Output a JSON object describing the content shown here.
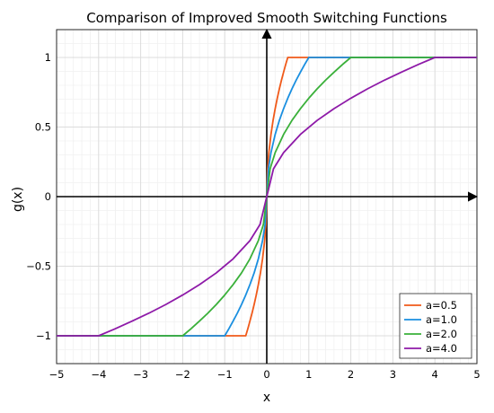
{
  "chart_data": {
    "type": "line",
    "title": "Comparison of Improved Smooth Switching Functions",
    "xlabel": "x",
    "ylabel": "g(x)",
    "xlim": [
      -5,
      5
    ],
    "ylim": [
      -1.2,
      1.2
    ],
    "xticks": [
      "−5",
      "−4",
      "−3",
      "−2",
      "−1",
      "0",
      "1",
      "2",
      "3",
      "4",
      "5"
    ],
    "yticks": [
      "−1",
      "−0.5",
      "0",
      "0.5",
      "1"
    ],
    "grid": true,
    "minor_grid": true,
    "legend_position": "bottom-right",
    "series": [
      {
        "name": "a=0.5",
        "color": "#f05a1a",
        "x": [
          -5,
          -0.5,
          -0.45,
          -0.4,
          -0.35,
          -0.3,
          -0.25,
          -0.2,
          -0.15,
          -0.1,
          -0.05,
          -0.02,
          0,
          0.02,
          0.05,
          0.1,
          0.15,
          0.2,
          0.25,
          0.3,
          0.35,
          0.4,
          0.45,
          0.5,
          5
        ],
        "y": [
          -1,
          -1,
          -0.949,
          -0.894,
          -0.837,
          -0.775,
          -0.707,
          -0.632,
          -0.548,
          -0.447,
          -0.316,
          -0.2,
          0,
          0.2,
          0.316,
          0.447,
          0.548,
          0.632,
          0.707,
          0.775,
          0.837,
          0.894,
          0.949,
          1,
          1
        ]
      },
      {
        "name": "a=1.0",
        "color": "#1a8fe0",
        "x": [
          -5,
          -1,
          -0.9,
          -0.8,
          -0.7,
          -0.6,
          -0.5,
          -0.4,
          -0.3,
          -0.2,
          -0.1,
          -0.04,
          0,
          0.04,
          0.1,
          0.2,
          0.3,
          0.4,
          0.5,
          0.6,
          0.7,
          0.8,
          0.9,
          1,
          5
        ],
        "y": [
          -1,
          -1,
          -0.949,
          -0.894,
          -0.837,
          -0.775,
          -0.707,
          -0.632,
          -0.548,
          -0.447,
          -0.316,
          -0.2,
          0,
          0.2,
          0.316,
          0.447,
          0.548,
          0.632,
          0.707,
          0.775,
          0.837,
          0.894,
          0.949,
          1,
          1
        ]
      },
      {
        "name": "a=2.0",
        "color": "#3ab03a",
        "x": [
          -5,
          -2,
          -1.8,
          -1.6,
          -1.4,
          -1.2,
          -1,
          -0.8,
          -0.6,
          -0.4,
          -0.2,
          -0.08,
          0,
          0.08,
          0.2,
          0.4,
          0.6,
          0.8,
          1,
          1.2,
          1.4,
          1.6,
          1.8,
          2,
          5
        ],
        "y": [
          -1,
          -1,
          -0.949,
          -0.894,
          -0.837,
          -0.775,
          -0.707,
          -0.632,
          -0.548,
          -0.447,
          -0.316,
          -0.2,
          0,
          0.2,
          0.316,
          0.447,
          0.548,
          0.632,
          0.707,
          0.775,
          0.837,
          0.894,
          0.949,
          1,
          1
        ]
      },
      {
        "name": "a=4.0",
        "color": "#8e1aa8",
        "x": [
          -5,
          -4,
          -3.6,
          -3.2,
          -2.8,
          -2.4,
          -2,
          -1.6,
          -1.2,
          -0.8,
          -0.4,
          -0.16,
          0,
          0.16,
          0.4,
          0.8,
          1.2,
          1.6,
          2,
          2.4,
          2.8,
          3.2,
          3.6,
          4,
          5
        ],
        "y": [
          -1,
          -1,
          -0.949,
          -0.894,
          -0.837,
          -0.775,
          -0.707,
          -0.632,
          -0.548,
          -0.447,
          -0.316,
          -0.2,
          0,
          0.2,
          0.316,
          0.447,
          0.548,
          0.632,
          0.707,
          0.775,
          0.837,
          0.894,
          0.949,
          1,
          1
        ]
      }
    ]
  }
}
